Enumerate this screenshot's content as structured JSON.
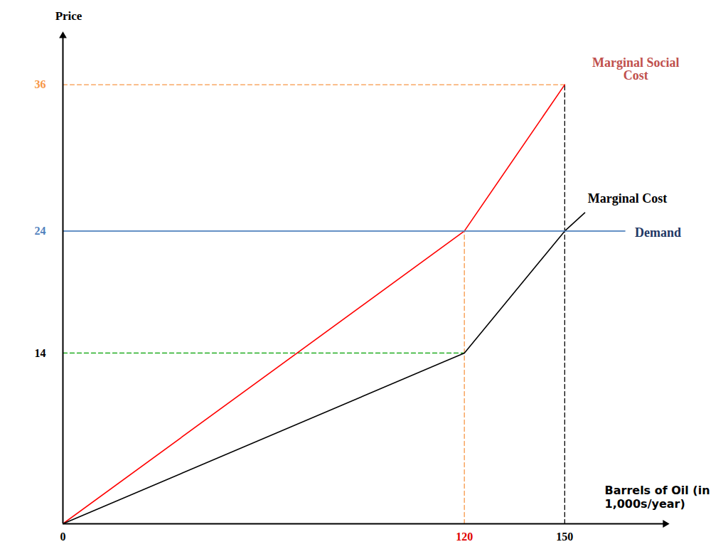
{
  "chart_data": {
    "type": "line",
    "x_label": "Barrels of Oil (in 1,000s/year)",
    "y_label": "Price",
    "xlim": [
      0,
      180
    ],
    "ylim": [
      0,
      40
    ],
    "xticks": [
      0,
      120,
      150
    ],
    "yticks": [
      14,
      24,
      36
    ],
    "grid": false,
    "series": [
      {
        "name": "Marginal Social Cost",
        "color": "#ff0000",
        "x": [
          0,
          120,
          150
        ],
        "values": [
          0,
          24,
          36
        ]
      },
      {
        "name": "Marginal Cost",
        "color": "#000000",
        "x": [
          0,
          120,
          150,
          156
        ],
        "values": [
          0,
          14,
          24,
          25.5
        ]
      },
      {
        "name": "Demand",
        "color": "#4f81bd",
        "x": [
          0,
          168
        ],
        "values": [
          24,
          24
        ]
      }
    ],
    "guides": [
      {
        "x": [
          0,
          150
        ],
        "values": [
          36,
          36
        ],
        "color": "#f79646",
        "line_style": "dashed"
      },
      {
        "x": [
          150,
          150
        ],
        "values": [
          0,
          36
        ],
        "color": "#000000",
        "line_style": "dashed"
      },
      {
        "x": [
          120,
          120
        ],
        "values": [
          0,
          24
        ],
        "color": "#f79646",
        "line_style": "dashed"
      },
      {
        "x": [
          0,
          120
        ],
        "values": [
          14,
          14
        ],
        "color": "#00a000",
        "line_style": "dashed"
      }
    ]
  }
}
